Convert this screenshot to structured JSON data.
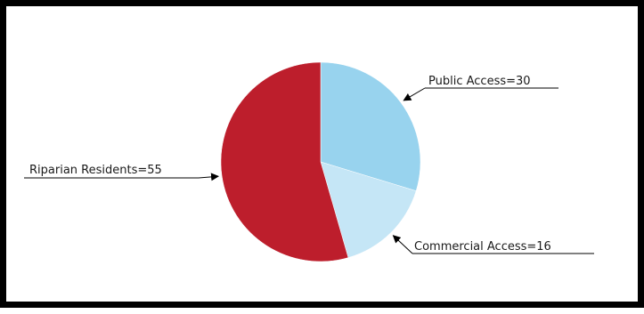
{
  "chart_data": {
    "type": "pie",
    "title": "",
    "slices": [
      {
        "label": "Public Access=30",
        "category": "Public Access",
        "value": 30,
        "color": "#98d3ee"
      },
      {
        "label": "Commercial Access=16",
        "category": "Commercial Access",
        "value": 16,
        "color": "#c5e6f6"
      },
      {
        "label": "Riparian Residents=55",
        "category": "Riparian Residents",
        "value": 55,
        "color": "#bd1e2c"
      }
    ],
    "start": "12 o'clock",
    "direction": "clockwise",
    "legend": "none",
    "labels": "outside with leader arrows"
  }
}
